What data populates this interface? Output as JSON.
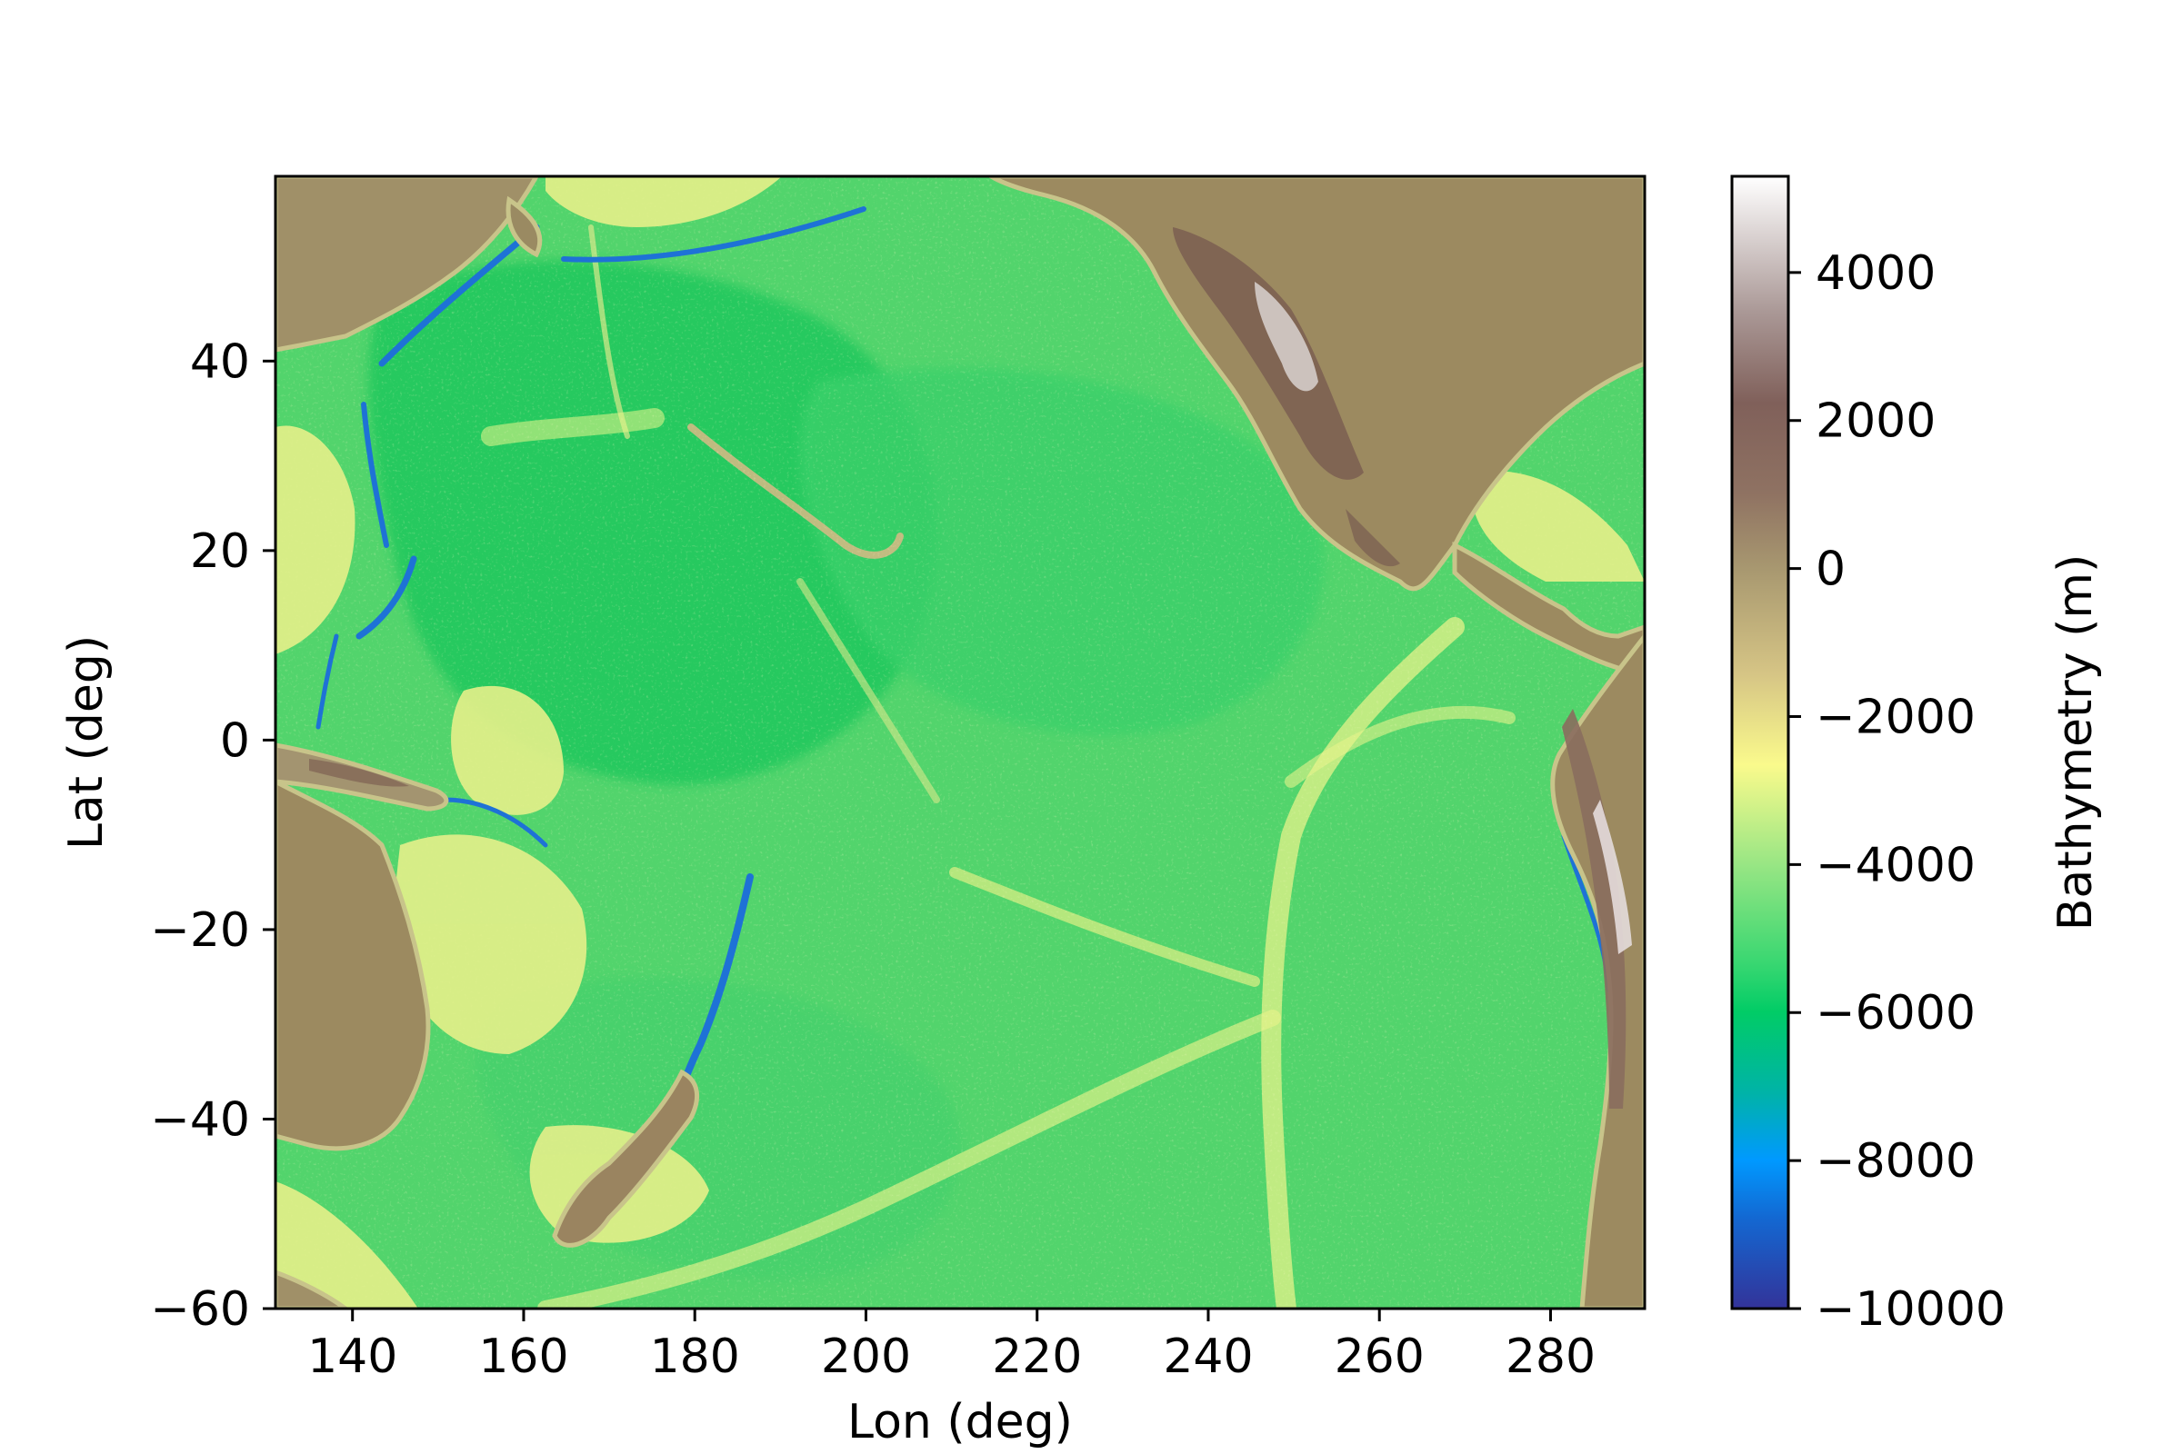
{
  "chart_data": {
    "type": "heatmap",
    "title": "",
    "xlabel": "Lon (deg)",
    "ylabel": "Lat (deg)",
    "xlim": [
      131,
      291
    ],
    "ylim": [
      -60,
      59.5
    ],
    "xticks": [
      140,
      160,
      180,
      200,
      220,
      240,
      260,
      280
    ],
    "xtick_labels": [
      "140",
      "160",
      "180",
      "200",
      "220",
      "240",
      "260",
      "280"
    ],
    "yticks": [
      -60,
      -40,
      -20,
      0,
      20,
      40
    ],
    "ytick_labels": [
      "−60",
      "−40",
      "−20",
      "0",
      "20",
      "40"
    ],
    "colorbar": {
      "label": "Bathymetry (m)",
      "colormap": "terrain",
      "range": [
        -10000,
        5300
      ],
      "ticks": [
        -10000,
        -8000,
        -6000,
        -4000,
        -2000,
        0,
        2000,
        4000
      ],
      "tick_labels": [
        "−10000",
        "−8000",
        "−6000",
        "−4000",
        "−2000",
        "0",
        "2000",
        "4000"
      ]
    },
    "grid": false,
    "colors": {
      "deep_trench": "#1d6fd8",
      "abyssal_plain": "#2fce64",
      "ocean_floor": "#5ad86e",
      "ridge": "#e9f58a",
      "coast": "#a89a68",
      "land": "#9c8a60",
      "mountains": "#7a5e4f",
      "peaks": "#e6e0df"
    }
  }
}
